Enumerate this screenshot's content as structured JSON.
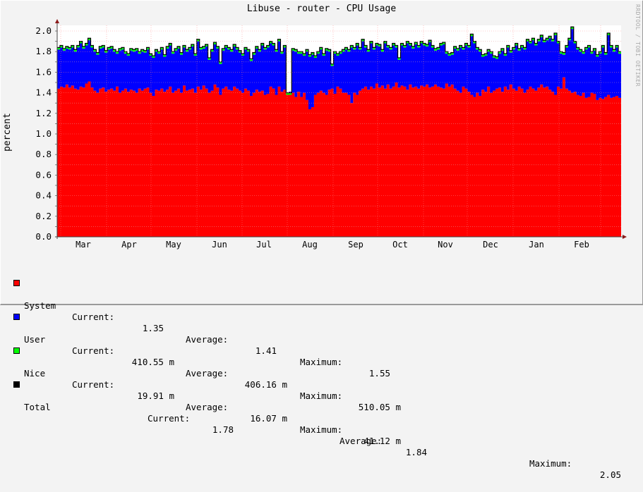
{
  "chart_data": {
    "type": "area",
    "title": "Libuse - router - CPU Usage",
    "xlabel": "",
    "ylabel": "percent",
    "ylim": [
      0,
      2.0
    ],
    "yticks": [
      "0.0",
      "0.2",
      "0.4",
      "0.6",
      "0.8",
      "1.0",
      "1.2",
      "1.4",
      "1.6",
      "1.8",
      "2.0"
    ],
    "xticks": [
      "Mar",
      "Apr",
      "May",
      "Jun",
      "Jul",
      "Aug",
      "Sep",
      "Oct",
      "Nov",
      "Dec",
      "Jan",
      "Feb"
    ],
    "grid": true,
    "stacked": true,
    "watermark": "RRDTOOL / TOBI OETIKER",
    "series": [
      {
        "name": "System",
        "color": "#ff0000",
        "current": "1.35",
        "average": "1.41",
        "maximum": "1.55"
      },
      {
        "name": "User",
        "color": "#0000ff",
        "current": "410.55 m",
        "average": "406.16 m",
        "maximum": "510.05 m"
      },
      {
        "name": "Nice",
        "color": "#00ff00",
        "current": "19.91 m",
        "average": "16.07 m",
        "maximum": "41.12 m"
      },
      {
        "name": "Total",
        "color": "#000000",
        "current": "1.78",
        "average": "1.84",
        "maximum": "2.05"
      }
    ],
    "system_profile": [
      1.44,
      1.46,
      1.45,
      1.48,
      1.45,
      1.47,
      1.44,
      1.43,
      1.46,
      1.45,
      1.49,
      1.51,
      1.45,
      1.42,
      1.4,
      1.44,
      1.45,
      1.41,
      1.43,
      1.44,
      1.42,
      1.46,
      1.4,
      1.42,
      1.44,
      1.41,
      1.43,
      1.42,
      1.4,
      1.44,
      1.42,
      1.44,
      1.45,
      1.4,
      1.37,
      1.43,
      1.42,
      1.44,
      1.41,
      1.43,
      1.46,
      1.4,
      1.42,
      1.44,
      1.4,
      1.47,
      1.42,
      1.43,
      1.44,
      1.4,
      1.46,
      1.43,
      1.47,
      1.44,
      1.4,
      1.42,
      1.48,
      1.45,
      1.38,
      1.44,
      1.46,
      1.43,
      1.42,
      1.46,
      1.44,
      1.42,
      1.4,
      1.44,
      1.42,
      1.37,
      1.4,
      1.43,
      1.41,
      1.42,
      1.38,
      1.39,
      1.46,
      1.44,
      1.38,
      1.46,
      1.41,
      1.43,
      1.38,
      1.41,
      1.4,
      1.36,
      1.41,
      1.36,
      1.4,
      1.33,
      1.24,
      1.26,
      1.38,
      1.4,
      1.42,
      1.4,
      1.38,
      1.43,
      1.44,
      1.39,
      1.46,
      1.44,
      1.4,
      1.4,
      1.38,
      1.3,
      1.4,
      1.38,
      1.42,
      1.44,
      1.46,
      1.43,
      1.46,
      1.44,
      1.49,
      1.45,
      1.47,
      1.44,
      1.48,
      1.44,
      1.46,
      1.5,
      1.45,
      1.47,
      1.46,
      1.43,
      1.48,
      1.45,
      1.46,
      1.44,
      1.47,
      1.46,
      1.48,
      1.45,
      1.46,
      1.48,
      1.46,
      1.45,
      1.44,
      1.49,
      1.46,
      1.48,
      1.44,
      1.42,
      1.4,
      1.46,
      1.44,
      1.41,
      1.38,
      1.36,
      1.4,
      1.37,
      1.43,
      1.41,
      1.46,
      1.4,
      1.42,
      1.44,
      1.45,
      1.41,
      1.46,
      1.43,
      1.48,
      1.44,
      1.42,
      1.46,
      1.44,
      1.4,
      1.43,
      1.46,
      1.44,
      1.42,
      1.45,
      1.48,
      1.45,
      1.46,
      1.43,
      1.41,
      1.38,
      1.46,
      1.44,
      1.55,
      1.44,
      1.42,
      1.4,
      1.41,
      1.38,
      1.37,
      1.4,
      1.35,
      1.36,
      1.4,
      1.39,
      1.33,
      1.35,
      1.34,
      1.36,
      1.38,
      1.35,
      1.36,
      1.37,
      1.35
    ],
    "total_profile": [
      1.84,
      1.86,
      1.83,
      1.85,
      1.84,
      1.86,
      1.82,
      1.86,
      1.9,
      1.85,
      1.88,
      1.93,
      1.86,
      1.82,
      1.79,
      1.85,
      1.86,
      1.81,
      1.84,
      1.85,
      1.82,
      1.8,
      1.83,
      1.84,
      1.8,
      1.78,
      1.83,
      1.82,
      1.83,
      1.8,
      1.82,
      1.81,
      1.84,
      1.78,
      1.76,
      1.82,
      1.8,
      1.84,
      1.77,
      1.85,
      1.88,
      1.8,
      1.83,
      1.85,
      1.79,
      1.86,
      1.82,
      1.84,
      1.87,
      1.78,
      1.92,
      1.84,
      1.85,
      1.87,
      1.74,
      1.82,
      1.89,
      1.85,
      1.7,
      1.83,
      1.86,
      1.84,
      1.82,
      1.87,
      1.84,
      1.81,
      1.78,
      1.84,
      1.82,
      1.73,
      1.79,
      1.85,
      1.82,
      1.88,
      1.84,
      1.86,
      1.9,
      1.88,
      1.82,
      1.92,
      1.8,
      1.86,
      1.4,
      1.4,
      1.83,
      1.82,
      1.8,
      1.8,
      1.78,
      1.82,
      1.77,
      1.79,
      1.76,
      1.8,
      1.84,
      1.78,
      1.83,
      1.82,
      1.68,
      1.8,
      1.78,
      1.8,
      1.82,
      1.84,
      1.82,
      1.86,
      1.84,
      1.88,
      1.84,
      1.92,
      1.86,
      1.82,
      1.9,
      1.84,
      1.88,
      1.87,
      1.82,
      1.9,
      1.86,
      1.84,
      1.88,
      1.86,
      1.74,
      1.88,
      1.86,
      1.9,
      1.88,
      1.85,
      1.89,
      1.86,
      1.9,
      1.88,
      1.87,
      1.91,
      1.86,
      1.83,
      1.84,
      1.88,
      1.89,
      1.8,
      1.78,
      1.79,
      1.85,
      1.83,
      1.86,
      1.84,
      1.88,
      1.86,
      1.97,
      1.9,
      1.84,
      1.82,
      1.77,
      1.78,
      1.82,
      1.8,
      1.76,
      1.75,
      1.8,
      1.83,
      1.78,
      1.86,
      1.81,
      1.84,
      1.88,
      1.83,
      1.86,
      1.84,
      1.92,
      1.9,
      1.93,
      1.88,
      1.92,
      1.96,
      1.91,
      1.93,
      1.95,
      1.92,
      1.98,
      1.9,
      1.8,
      1.79,
      1.86,
      1.93,
      2.04,
      1.9,
      1.84,
      1.82,
      1.8,
      1.84,
      1.86,
      1.8,
      1.83,
      1.77,
      1.8,
      1.86,
      1.79,
      1.98,
      1.86,
      1.82,
      1.86,
      1.8,
      1.76,
      1.78,
      1.76,
      1.8,
      1.79
    ],
    "nice_profile": 0.02
  },
  "legend": {
    "rows": [
      {
        "name": "System",
        "current_label": "Current:",
        "current": "1.35",
        "average_label": "Average:",
        "average": "1.41",
        "maximum_label": "Maximum:",
        "maximum": "1.55"
      },
      {
        "name": "User",
        "current_label": "Current:",
        "current": "410.55 m",
        "average_label": "Average:",
        "average": "406.16 m",
        "maximum_label": "Maximum:",
        "maximum": "510.05 m"
      },
      {
        "name": "Nice",
        "current_label": "Current:",
        "current": "19.91 m",
        "average_label": "Average:",
        "average": "16.07 m",
        "maximum_label": "Maximum:",
        "maximum": "41.12 m"
      },
      {
        "name": "Total",
        "current_label": "Current:",
        "current": "1.78",
        "average_label": "Average:",
        "average": "1.84",
        "maximum_label": "Maximum:",
        "maximum": "2.05"
      }
    ]
  }
}
